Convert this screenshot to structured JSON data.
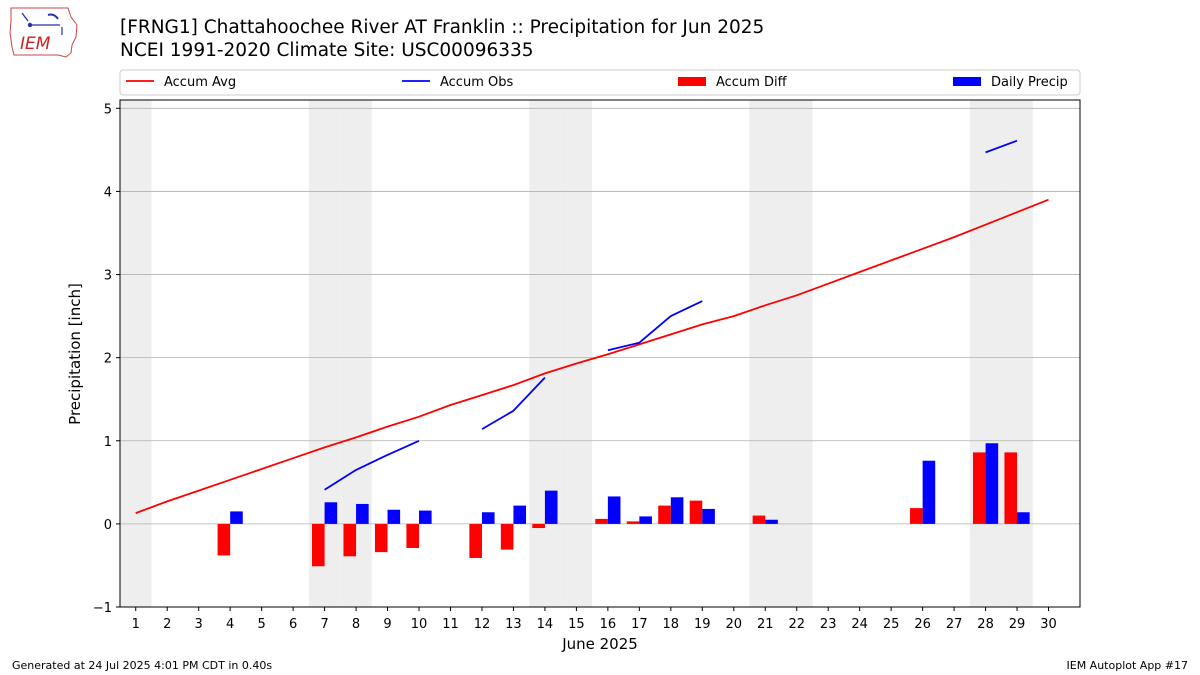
{
  "header": {
    "title_line1": "[FRNG1] Chattahoochee River  AT Franklin :: Precipitation for Jun 2025",
    "title_line2": "NCEI 1991-2020 Climate Site: USC00096335",
    "logo_text": "IEM"
  },
  "footer": {
    "generated": "Generated at 24 Jul 2025 4:01 PM CDT in 0.40s",
    "app": "IEM Autoplot App #17"
  },
  "colors": {
    "avg": "#ff0000",
    "obs": "#0000ff",
    "diff": "#ff0000",
    "daily": "#0000ff",
    "weekend": "#eeeeee",
    "grid": "#b0b0b0"
  },
  "chart_data": {
    "type": "bar",
    "title": "[FRNG1] Chattahoochee River  AT Franklin :: Precipitation for Jun 2025",
    "xlabel": "June 2025",
    "ylabel": "Precipitation [inch]",
    "ylim": [
      -1,
      5.1
    ],
    "yticks": [
      -1,
      0,
      1,
      2,
      3,
      4,
      5
    ],
    "xlim": [
      0.5,
      31
    ],
    "days": [
      1,
      2,
      3,
      4,
      5,
      6,
      7,
      8,
      9,
      10,
      11,
      12,
      13,
      14,
      15,
      16,
      17,
      18,
      19,
      20,
      21,
      22,
      23,
      24,
      25,
      26,
      27,
      28,
      29,
      30
    ],
    "weekend_days": [
      1,
      7,
      8,
      14,
      15,
      21,
      22,
      28,
      29
    ],
    "grid": true,
    "legend": {
      "placement": "top",
      "entries": [
        "Accum Avg",
        "Accum Obs",
        "Accum Diff",
        "Daily Precip"
      ]
    },
    "series": [
      {
        "name": "Accum Avg",
        "kind": "line",
        "values": [
          0.13,
          0.27,
          0.4,
          0.53,
          0.66,
          0.79,
          0.92,
          1.04,
          1.17,
          1.29,
          1.43,
          1.55,
          1.67,
          1.81,
          1.93,
          2.04,
          2.16,
          2.28,
          2.4,
          2.5,
          2.63,
          2.75,
          2.89,
          3.03,
          3.17,
          3.31,
          3.45,
          3.6,
          3.75,
          3.9
        ]
      },
      {
        "name": "Accum Obs",
        "kind": "line",
        "values": [
          null,
          null,
          null,
          null,
          null,
          null,
          0.41,
          0.65,
          0.83,
          1.0,
          null,
          1.14,
          1.36,
          1.76,
          null,
          2.09,
          2.18,
          2.5,
          2.68,
          null,
          null,
          null,
          null,
          null,
          null,
          null,
          null,
          4.47,
          4.61,
          null
        ]
      },
      {
        "name": "Accum Diff",
        "kind": "bar",
        "values": [
          null,
          null,
          null,
          -0.38,
          null,
          null,
          -0.51,
          -0.39,
          -0.34,
          -0.29,
          null,
          -0.41,
          -0.31,
          -0.05,
          null,
          0.06,
          0.03,
          0.22,
          0.28,
          null,
          0.1,
          null,
          null,
          null,
          null,
          0.19,
          null,
          0.86,
          0.86,
          null
        ]
      },
      {
        "name": "Daily Precip",
        "kind": "bar",
        "values": [
          null,
          null,
          null,
          0.15,
          null,
          null,
          0.26,
          0.24,
          0.17,
          0.16,
          null,
          0.14,
          0.22,
          0.4,
          null,
          0.33,
          0.09,
          0.32,
          0.18,
          null,
          0.05,
          null,
          null,
          null,
          null,
          0.76,
          null,
          0.97,
          0.14,
          null
        ]
      }
    ]
  }
}
